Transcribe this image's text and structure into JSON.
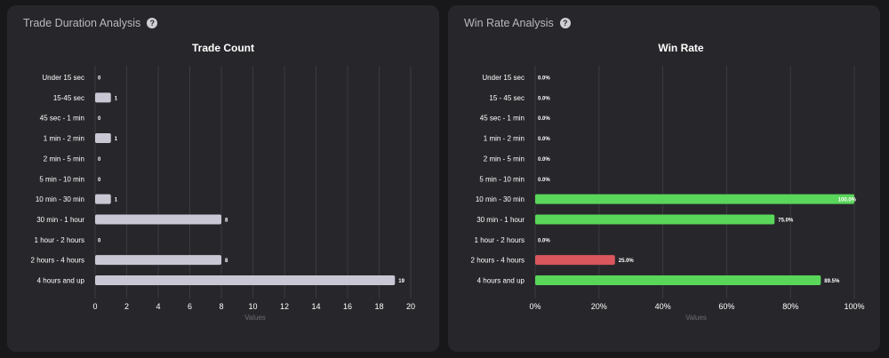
{
  "panels": [
    {
      "title": "Trade Duration Analysis",
      "help_icon": "question-circle-icon"
    },
    {
      "title": "Win Rate Analysis",
      "help_icon": "question-circle-icon"
    }
  ],
  "colors": {
    "background": "#18181b",
    "panel": "#27272b",
    "grid": "#3a3a40",
    "count_bar": "#c9c7d3",
    "win_bar": "#5ad65a",
    "loss_bar": "#d9575d",
    "text": "#ffffff",
    "axis_label": "#6b6b72"
  },
  "chart_data": [
    {
      "type": "bar",
      "orientation": "horizontal",
      "title": "Trade Count",
      "xlabel": "Values",
      "ylabel": "",
      "xlim": [
        0,
        20
      ],
      "xticks": [
        0,
        2,
        4,
        6,
        8,
        10,
        12,
        14,
        16,
        18,
        20
      ],
      "xtick_labels": [
        "0",
        "2",
        "4",
        "6",
        "8",
        "10",
        "12",
        "14",
        "16",
        "18",
        "20"
      ],
      "categories": [
        "Under 15 sec",
        "15-45 sec",
        "45 sec - 1 min",
        "1 min - 2 min",
        "2 min - 5 min",
        "5 min - 10 min",
        "10 min - 30 min",
        "30 min - 1 hour",
        "1 hour - 2 hours",
        "2 hours - 4 hours",
        "4 hours and up"
      ],
      "values": [
        0,
        1,
        0,
        1,
        0,
        0,
        1,
        8,
        0,
        8,
        19
      ],
      "value_labels": [
        "0",
        "1",
        "0",
        "1",
        "0",
        "0",
        "1",
        "8",
        "0",
        "8",
        "19"
      ],
      "grid": true
    },
    {
      "type": "bar",
      "orientation": "horizontal",
      "title": "Win Rate",
      "xlabel": "Values",
      "ylabel": "",
      "xlim": [
        0,
        100
      ],
      "xticks": [
        0,
        20,
        40,
        60,
        80,
        100
      ],
      "xtick_labels": [
        "0%",
        "20%",
        "40%",
        "60%",
        "80%",
        "100%"
      ],
      "categories": [
        "Under 15 sec",
        "15 - 45 sec",
        "45 sec - 1 min",
        "1 min - 2 min",
        "2 min - 5 min",
        "5 min - 10 min",
        "10 min - 30 min",
        "30 min - 1 hour",
        "1 hour - 2 hours",
        "2 hours - 4 hours",
        "4 hours and up"
      ],
      "values": [
        0,
        0,
        0,
        0,
        0,
        0,
        100,
        75,
        0,
        25,
        89.5
      ],
      "value_labels": [
        "0.0%",
        "0.0%",
        "0.0%",
        "0.0%",
        "0.0%",
        "0.0%",
        "100.0%",
        "75.0%",
        "0.0%",
        "25.0%",
        "89.5%"
      ],
      "bar_colors": [
        "win",
        "win",
        "win",
        "win",
        "win",
        "win",
        "win",
        "win",
        "win",
        "loss",
        "win"
      ],
      "grid": true
    }
  ]
}
